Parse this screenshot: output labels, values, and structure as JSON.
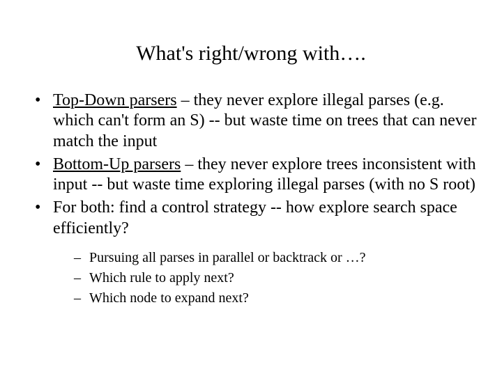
{
  "title": "What's right/wrong with….",
  "bullets": [
    {
      "underlined": "Top-Down parsers",
      "rest": " – they never explore illegal parses (e.g. which can't form an S) -- but waste time on trees that can never match the input"
    },
    {
      "underlined": "Bottom-Up parsers",
      "rest": " – they never explore trees inconsistent with input -- but waste time exploring illegal parses (with no S root)"
    },
    {
      "underlined": "",
      "rest": "For both: find a control strategy -- how explore search space efficiently?"
    }
  ],
  "subbullets": [
    "Pursuing all parses in parallel or backtrack or …?",
    "Which rule to apply next?",
    "Which node to expand next?"
  ],
  "styling": {
    "background_color": "#ffffff",
    "text_color": "#000000",
    "title_fontsize": 30,
    "bullet_fontsize": 24,
    "sub_fontsize": 20,
    "font_family": "Times New Roman"
  }
}
